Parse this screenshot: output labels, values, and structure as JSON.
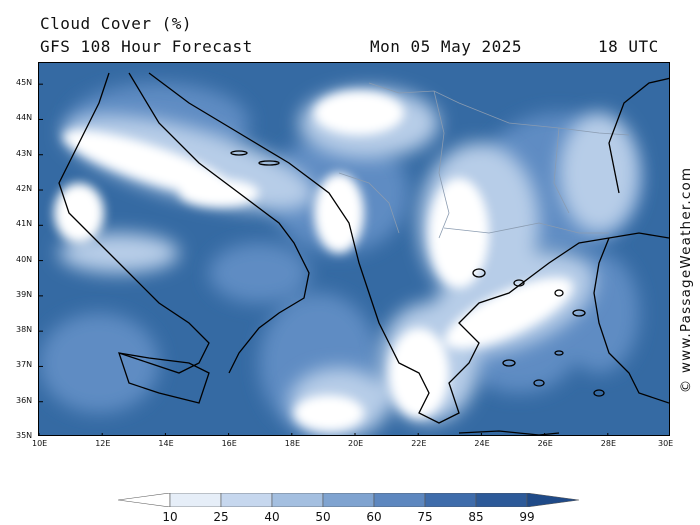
{
  "header": {
    "title": "Cloud Cover (%)",
    "subtitle": "GFS 108 Hour Forecast",
    "date": "Mon 05 May 2025",
    "time": "18 UTC"
  },
  "credit": "© www.PassageWeather.com",
  "map": {
    "lon_range": [
      10,
      30
    ],
    "lat_range": [
      35,
      45.6
    ],
    "lon_ticks": [
      "10E",
      "12E",
      "14E",
      "16E",
      "18E",
      "20E",
      "22E",
      "24E",
      "26E",
      "28E",
      "30E"
    ],
    "lat_ticks": [
      "35N",
      "36N",
      "37N",
      "38N",
      "39N",
      "40N",
      "41N",
      "42N",
      "43N",
      "44N",
      "45N"
    ],
    "land_color": "#356aa3"
  },
  "colorbar": {
    "labels": [
      "10",
      "25",
      "40",
      "50",
      "60",
      "75",
      "85",
      "99"
    ],
    "colors": [
      "#ffffff",
      "#e6eef8",
      "#c6d7ee",
      "#a4bfe0",
      "#7fa3d0",
      "#5d87bf",
      "#3f6cab",
      "#2d5a99",
      "#1f4a88"
    ]
  }
}
